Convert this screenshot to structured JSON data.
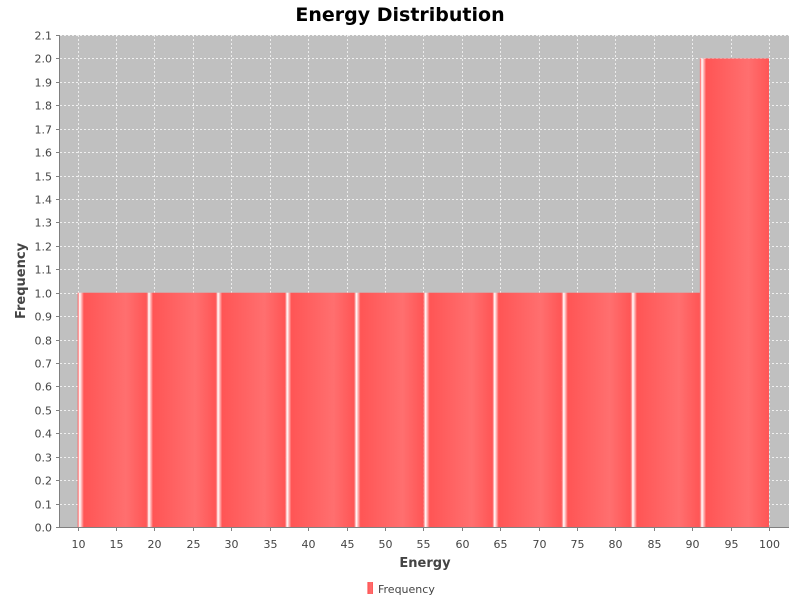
{
  "chart_data": {
    "type": "bar",
    "title": "Energy Distribution",
    "xlabel": "Energy",
    "ylabel": "Frequency",
    "xlim": [
      7.7,
      102.6
    ],
    "ylim": [
      0,
      2.1
    ],
    "x_ticks": [
      "10",
      "15",
      "20",
      "25",
      "30",
      "35",
      "40",
      "45",
      "50",
      "55",
      "60",
      "65",
      "70",
      "75",
      "80",
      "85",
      "90",
      "95",
      "100"
    ],
    "y_ticks": [
      "0.0",
      "0.1",
      "0.2",
      "0.3",
      "0.4",
      "0.5",
      "0.6",
      "0.7",
      "0.8",
      "0.9",
      "1.0",
      "1.1",
      "1.2",
      "1.3",
      "1.4",
      "1.5",
      "1.6",
      "1.7",
      "1.8",
      "1.9",
      "2.0",
      "2.1"
    ],
    "bins": [
      {
        "start": 10.0,
        "end": 19.0,
        "value": 1
      },
      {
        "start": 19.0,
        "end": 28.0,
        "value": 1
      },
      {
        "start": 28.0,
        "end": 37.0,
        "value": 1
      },
      {
        "start": 37.0,
        "end": 46.0,
        "value": 1
      },
      {
        "start": 46.0,
        "end": 55.0,
        "value": 1
      },
      {
        "start": 55.0,
        "end": 64.0,
        "value": 1
      },
      {
        "start": 64.0,
        "end": 73.0,
        "value": 1
      },
      {
        "start": 73.0,
        "end": 82.0,
        "value": 1
      },
      {
        "start": 82.0,
        "end": 91.0,
        "value": 1
      },
      {
        "start": 91.0,
        "end": 100.0,
        "value": 2
      }
    ],
    "legend": {
      "label": "Frequency",
      "position": "bottom"
    },
    "grid": true,
    "colors": {
      "bar": "#ff5555",
      "plot_background": "#c0c0c0",
      "grid": "#ffffff"
    }
  }
}
